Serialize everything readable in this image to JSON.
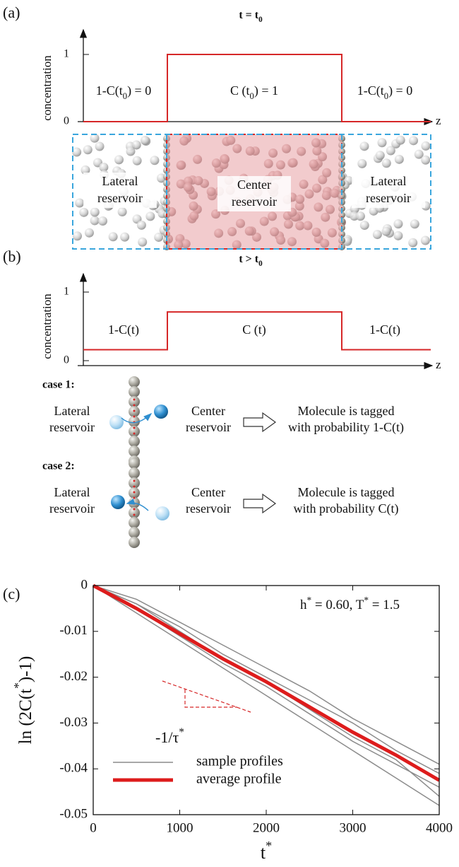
{
  "panel_a": {
    "label": "(a)",
    "title": [
      "t = t",
      "0"
    ],
    "y_axis_label": "concentration",
    "yticks": [
      1,
      0
    ],
    "levels": [
      0,
      1,
      0
    ],
    "z_label": "z",
    "regions": [
      [
        "1-C(t",
        "0",
        ") = 0"
      ],
      [
        "C (t",
        "0",
        ") = 1"
      ],
      [
        "1-C(t",
        "0",
        ") = 0"
      ]
    ],
    "reservoirs": [
      [
        "Lateral",
        "reservoir"
      ],
      [
        "Center",
        "reservoir"
      ],
      [
        "Lateral",
        "reservoir"
      ]
    ]
  },
  "panel_b": {
    "label": "(b)",
    "title": [
      "t > t",
      "0"
    ],
    "y_axis_label": "concentration",
    "yticks": [
      1,
      0
    ],
    "levels": [
      0.16,
      0.71,
      0.16
    ],
    "z_label": "z",
    "regions": [
      "1-C(t)",
      "C (t)",
      "1-C(t)"
    ]
  },
  "cases": [
    {
      "title": "case 1:",
      "from": [
        "Lateral",
        "reservoir"
      ],
      "to": [
        "Center",
        "reservoir"
      ],
      "result": [
        "Molecule is tagged",
        "with probability 1-C(t)"
      ]
    },
    {
      "title": "case 2:",
      "from": [
        "Lateral",
        "reservoir"
      ],
      "to": [
        "Center",
        "reservoir"
      ],
      "result": [
        "Molecule is tagged",
        "with probability C(t)"
      ]
    }
  ],
  "chart_data": {
    "type": "line",
    "panel_label": "(c)",
    "annotation": [
      "h",
      "*",
      " = 0.60, T",
      "*",
      " = 1.5"
    ],
    "slope_label": [
      "-1/τ",
      "*"
    ],
    "y_label": [
      "ln (2C(t",
      "*",
      ")-1)"
    ],
    "x_label": [
      "t",
      "*"
    ],
    "x": [
      0,
      500,
      1000,
      1500,
      2000,
      2500,
      3000,
      3500,
      4000
    ],
    "series": [
      {
        "name": "sample profiles",
        "color": "#8c8c8c",
        "profiles": [
          [
            0,
            -0.004,
            -0.009,
            -0.015,
            -0.02,
            -0.025,
            -0.03,
            -0.036,
            -0.041
          ],
          [
            0,
            -0.006,
            -0.012,
            -0.018,
            -0.024,
            -0.03,
            -0.036,
            -0.042,
            -0.048
          ],
          [
            0,
            -0.003,
            -0.008,
            -0.013,
            -0.018,
            -0.023,
            -0.029,
            -0.034,
            -0.039
          ],
          [
            0,
            -0.005,
            -0.011,
            -0.017,
            -0.022,
            -0.028,
            -0.034,
            -0.039,
            -0.044
          ],
          [
            0,
            -0.004,
            -0.01,
            -0.016,
            -0.021,
            -0.027,
            -0.033,
            -0.038,
            -0.046
          ]
        ]
      },
      {
        "name": "average profile",
        "color": "#dd1c1c",
        "values": [
          0,
          -0.005,
          -0.0105,
          -0.016,
          -0.021,
          -0.0265,
          -0.032,
          -0.037,
          -0.0425
        ]
      }
    ],
    "xlim": [
      0,
      4000
    ],
    "ylim": [
      -0.05,
      0
    ],
    "xticks": [
      0,
      1000,
      2000,
      3000,
      4000
    ],
    "yticks": [
      0,
      -0.01,
      -0.02,
      -0.03,
      -0.04,
      -0.05
    ]
  }
}
